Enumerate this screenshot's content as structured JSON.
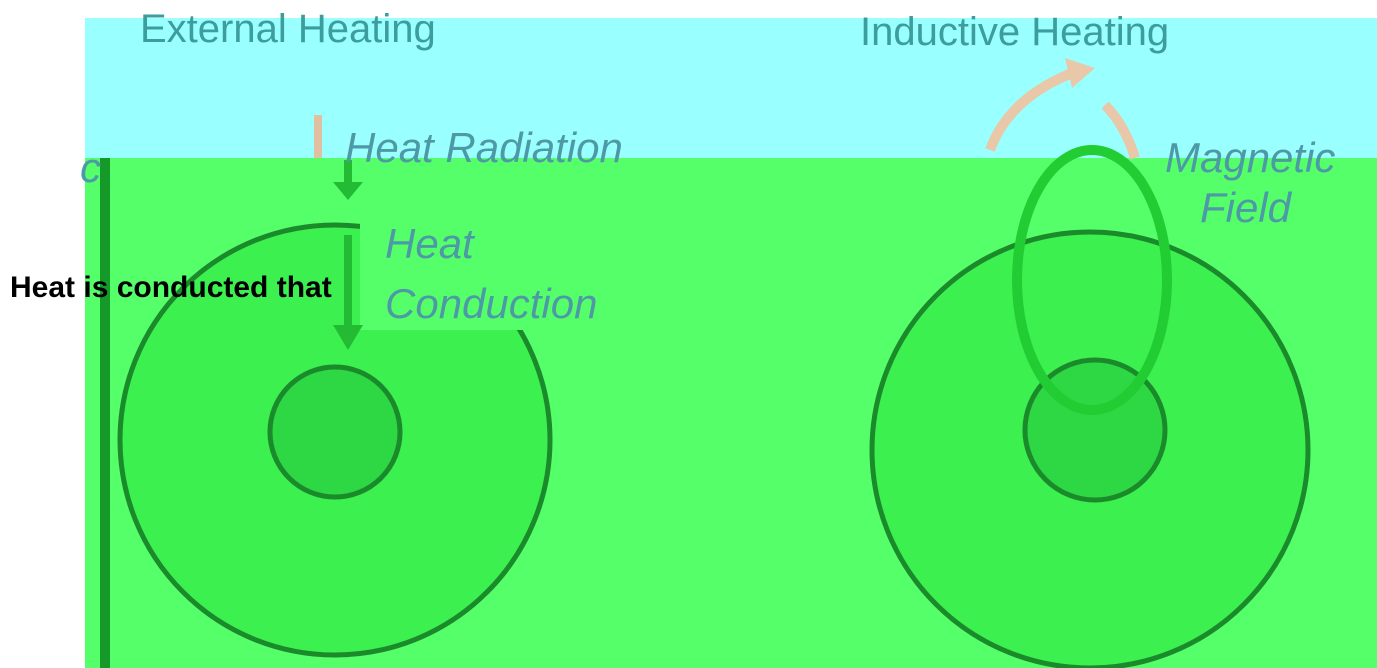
{
  "left_panel": {
    "title": "External Heating",
    "radiation_label": "Heat Radiation",
    "conduction_label": [
      "Heat",
      "Conduction"
    ],
    "edge_fragment": "c"
  },
  "right_panel": {
    "title": "Inductive Heating",
    "field_label": [
      "Magnetic",
      "Field"
    ]
  },
  "caption": "Heat is conducted that"
}
